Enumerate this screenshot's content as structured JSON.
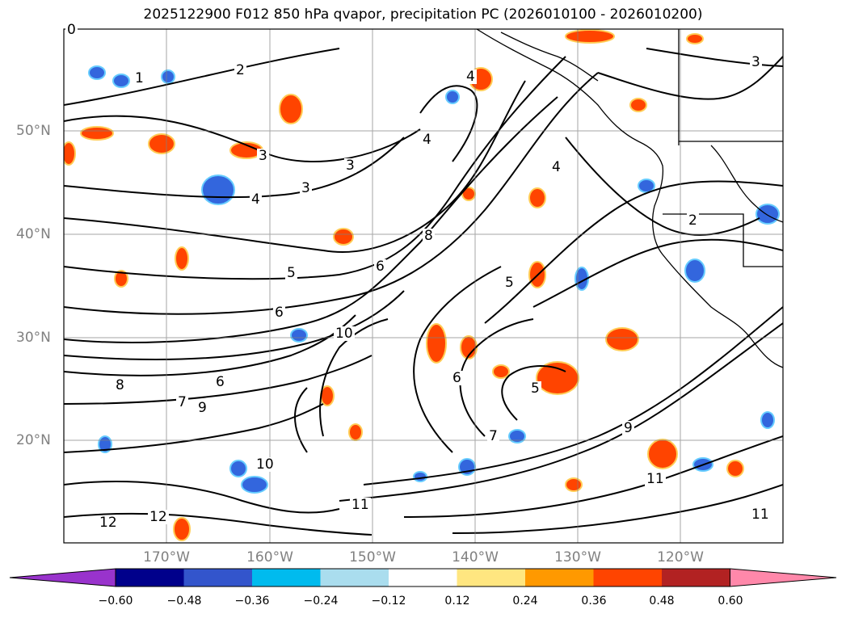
{
  "title": "2025122900 F012 850 hPa qvapor, precipitation PC (2026010100 - 2026010200)",
  "lat_labels": [
    "50°N",
    "40°N",
    "30°N",
    "20°N"
  ],
  "lon_labels": [
    "170°W",
    "160°W",
    "150°W",
    "140°W",
    "130°W",
    "120°W"
  ],
  "colorbar": {
    "ticks": [
      "−0.60",
      "−0.48",
      "−0.36",
      "−0.24",
      "−0.12",
      "0.12",
      "0.24",
      "0.36",
      "0.48",
      "0.60"
    ],
    "colors": [
      "#9933cc",
      "#00008b",
      "#3355cc",
      "#00bbee",
      "#aaddee",
      "#ffffff",
      "#ffe680",
      "#ff9900",
      "#ff4400",
      "#b22222",
      "#ff88aa"
    ]
  },
  "contour_labels": [
    "0",
    "1",
    "2",
    "3",
    "3",
    "3",
    "4",
    "4",
    "4",
    "5",
    "5",
    "6",
    "6",
    "6",
    "7",
    "8",
    "8",
    "9",
    "9",
    "10",
    "10",
    "11",
    "11",
    "12",
    "12",
    "11",
    "2",
    "3",
    "4",
    "5",
    "6",
    "7"
  ],
  "colors": {
    "contour": "#000000",
    "grid": "#808080",
    "coast": "#000000"
  }
}
